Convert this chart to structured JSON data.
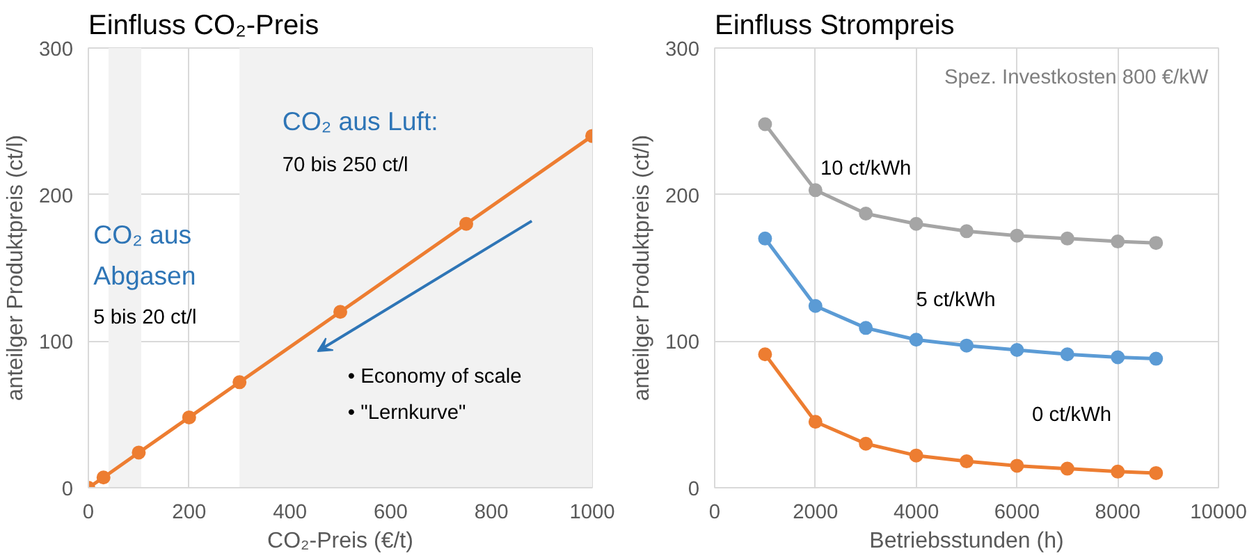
{
  "chart_data": [
    {
      "type": "line",
      "title": "Einfluss CO₂-Preis",
      "xlabel": "CO₂-Preis (€/t)",
      "ylabel": "anteilger Produktpreis (ct/l)",
      "x": [
        0,
        30,
        100,
        200,
        300,
        500,
        750,
        1000
      ],
      "series": [
        {
          "color": "#ed7d31",
          "values": [
            0,
            7,
            24,
            48,
            72,
            120,
            180,
            240
          ]
        }
      ],
      "xlim": [
        0,
        1000
      ],
      "xticks": [
        0,
        200,
        400,
        600,
        800,
        1000
      ],
      "ylim": [
        0,
        300
      ],
      "yticks": [
        0,
        100,
        200,
        300
      ],
      "bands": [
        {
          "axis": "x",
          "from": 40,
          "to": 105,
          "color": "#f2f2f2"
        },
        {
          "axis": "x",
          "from": 300,
          "to": 1000,
          "color": "#f2f2f2"
        }
      ],
      "annotations": [
        "CO₂ aus Abgasen",
        "5 bis 20 ct/l",
        "CO₂ aus Luft:",
        "70 bis 250 ct/l",
        "• Economy of scale",
        "• \"Lernkurve\""
      ],
      "grid": true,
      "marker": "circle",
      "line_style": "solid",
      "legend": false
    },
    {
      "type": "line",
      "title": "Einfluss Strompreis",
      "xlabel": "Betriebsstunden (h)",
      "ylabel": "anteilger Produktpreis (ct/l)",
      "x": [
        1000,
        2000,
        3000,
        4000,
        5000,
        6000,
        7000,
        8000,
        8760
      ],
      "series": [
        {
          "name": "10 ct/kWh",
          "color": "#a5a5a5",
          "values": [
            248,
            203,
            187,
            180,
            175,
            172,
            170,
            168,
            167
          ]
        },
        {
          "name": "5 ct/kWh",
          "color": "#5b9bd5",
          "values": [
            170,
            124,
            109,
            101,
            97,
            94,
            91,
            89,
            88
          ]
        },
        {
          "name": "0 ct/kWh",
          "color": "#ed7d31",
          "values": [
            91,
            45,
            30,
            22,
            18,
            15,
            13,
            11,
            10
          ]
        }
      ],
      "xlim": [
        0,
        10000
      ],
      "xticks": [
        0,
        2000,
        4000,
        6000,
        8000,
        10000
      ],
      "ylim": [
        0,
        300
      ],
      "yticks": [
        0,
        100,
        200,
        300
      ],
      "annotations": [
        "Spez. Investkosten 800 €/kW"
      ],
      "grid": true,
      "marker": "circle",
      "line_style": "solid",
      "legend": false
    }
  ]
}
